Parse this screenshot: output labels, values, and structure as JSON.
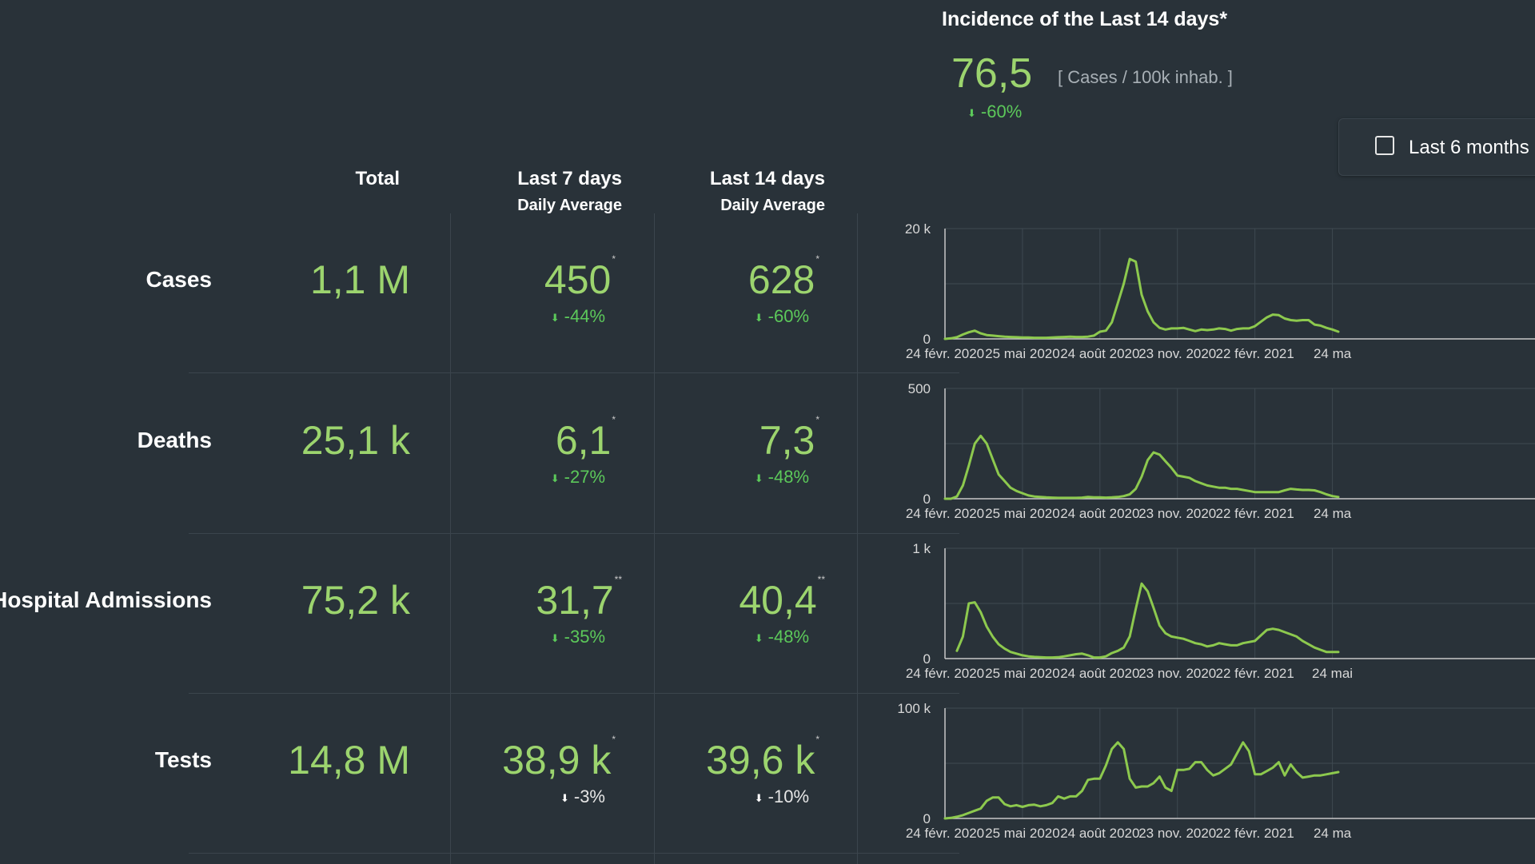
{
  "incidence": {
    "title": "Incidence of the Last 14 days*",
    "value": "76,5",
    "unit": "[ Cases / 100k inhab. ]",
    "change": "-60%",
    "change_icon": "down-arrow-icon"
  },
  "toggle": {
    "label": "Last 6 months",
    "checked": false
  },
  "columns": {
    "total": "Total",
    "last7": "Last 7 days",
    "last7_sub": "Daily Average",
    "last14": "Last 14 days",
    "last14_sub": "Daily Average"
  },
  "rows": [
    {
      "label": "Cases",
      "total": "1,1 M",
      "avg7": "450",
      "mark7": "*",
      "chg7": "-44%",
      "avg14": "628",
      "mark14": "*",
      "chg14": "-60%"
    },
    {
      "label": "Deaths",
      "total": "25,1 k",
      "avg7": "6,1",
      "mark7": "*",
      "chg7": "-27%",
      "avg14": "7,3",
      "mark14": "*",
      "chg14": "-48%"
    },
    {
      "label": "Hospital Admissions",
      "total": "75,2 k",
      "avg7": "31,7",
      "mark7": "**",
      "chg7": "-35%",
      "avg14": "40,4",
      "mark14": "**",
      "chg14": "-48%"
    },
    {
      "label": "Tests",
      "total": "14,8 M",
      "avg7": "38,9 k",
      "mark7": "*",
      "chg7": "-3%",
      "avg14": "39,6 k",
      "mark14": "*",
      "chg14": "-10%"
    }
  ],
  "colors": {
    "background": "#293239",
    "accent": "#9cd46e",
    "change_down": "#5cc95a",
    "line": "#8dc94e"
  },
  "chart_data": [
    {
      "type": "line",
      "ylim": [
        0,
        20000
      ],
      "ytick_labels": [
        "0",
        "20 k"
      ],
      "yticks": [
        0,
        20000
      ],
      "xtick_labels": [
        "24 févr. 2020",
        "25 mai 2020",
        "24 août 2020",
        "23 nov. 2020",
        "22 févr. 2021",
        "24 ma"
      ],
      "x": [
        0,
        7,
        14,
        21,
        28,
        35,
        42,
        49,
        56,
        63,
        70,
        77,
        84,
        91,
        98,
        105,
        112,
        119,
        126,
        133,
        140,
        147,
        154,
        161,
        168,
        175,
        182,
        189,
        196,
        203,
        210,
        217,
        224,
        231,
        238,
        245,
        252,
        259,
        266,
        273,
        280,
        287,
        294,
        301,
        308,
        315,
        322,
        329,
        336,
        343,
        350,
        357,
        364,
        371,
        378,
        385,
        392,
        399,
        406,
        413,
        420,
        427,
        434,
        441,
        448,
        455,
        462
      ],
      "values": [
        0,
        100,
        300,
        800,
        1200,
        1500,
        1000,
        700,
        600,
        500,
        400,
        350,
        300,
        250,
        250,
        200,
        200,
        200,
        250,
        300,
        350,
        400,
        350,
        350,
        400,
        600,
        1300,
        1500,
        3000,
        6500,
        10000,
        14500,
        14000,
        8000,
        5000,
        3000,
        2000,
        1700,
        1900,
        1900,
        2000,
        1700,
        1400,
        1700,
        1600,
        1700,
        1900,
        1800,
        1500,
        1800,
        1900,
        1900,
        2300,
        3100,
        3900,
        4400,
        4300,
        3700,
        3400,
        3300,
        3400,
        3400,
        2600,
        2400,
        2000,
        1700,
        1300
      ]
    },
    {
      "type": "line",
      "ylim": [
        0,
        500
      ],
      "ytick_labels": [
        "0",
        "500"
      ],
      "yticks": [
        0,
        500
      ],
      "xtick_labels": [
        "24 févr. 2020",
        "25 mai 2020",
        "24 août 2020",
        "23 nov. 2020",
        "22 févr. 2021",
        "24 ma"
      ],
      "x": [
        0,
        7,
        14,
        21,
        28,
        35,
        42,
        49,
        56,
        63,
        70,
        77,
        84,
        91,
        98,
        105,
        112,
        119,
        126,
        133,
        140,
        147,
        154,
        161,
        168,
        175,
        182,
        189,
        196,
        203,
        210,
        217,
        224,
        231,
        238,
        245,
        252,
        259,
        266,
        273,
        280,
        287,
        294,
        301,
        308,
        315,
        322,
        329,
        336,
        343,
        350,
        357,
        364,
        371,
        378,
        385,
        392,
        399,
        406,
        413,
        420,
        427,
        434,
        441,
        448,
        455,
        462
      ],
      "values": [
        0,
        0,
        10,
        60,
        150,
        250,
        285,
        250,
        180,
        110,
        80,
        50,
        35,
        25,
        15,
        10,
        8,
        6,
        5,
        4,
        4,
        4,
        4,
        5,
        8,
        6,
        6,
        5,
        6,
        8,
        12,
        20,
        45,
        100,
        175,
        210,
        200,
        170,
        140,
        105,
        100,
        95,
        80,
        70,
        60,
        55,
        50,
        50,
        45,
        45,
        40,
        35,
        30,
        30,
        30,
        30,
        30,
        38,
        45,
        42,
        40,
        40,
        38,
        30,
        20,
        12,
        8
      ]
    },
    {
      "type": "line",
      "ylim": [
        0,
        1000
      ],
      "ytick_labels": [
        "0",
        "1 k"
      ],
      "yticks": [
        0,
        1000
      ],
      "xtick_labels": [
        "24 févr. 2020",
        "25 mai 2020",
        "24 août 2020",
        "23 nov. 2020",
        "22 févr. 2021",
        "24 mai"
      ],
      "x": [
        14,
        21,
        28,
        35,
        42,
        49,
        56,
        63,
        70,
        77,
        84,
        91,
        98,
        105,
        112,
        119,
        126,
        133,
        140,
        147,
        154,
        161,
        168,
        175,
        182,
        189,
        196,
        203,
        210,
        217,
        224,
        231,
        238,
        245,
        252,
        259,
        266,
        273,
        280,
        287,
        294,
        301,
        308,
        315,
        322,
        329,
        336,
        343,
        350,
        357,
        364,
        371,
        378,
        385,
        392,
        399,
        406,
        413,
        420,
        427,
        434,
        441,
        448,
        455,
        462
      ],
      "values": [
        70,
        200,
        500,
        510,
        420,
        290,
        200,
        130,
        90,
        60,
        45,
        30,
        20,
        15,
        12,
        10,
        10,
        12,
        20,
        30,
        40,
        45,
        30,
        10,
        10,
        20,
        50,
        70,
        100,
        200,
        450,
        680,
        610,
        460,
        300,
        230,
        200,
        190,
        180,
        160,
        140,
        130,
        110,
        120,
        140,
        130,
        120,
        120,
        140,
        150,
        160,
        210,
        260,
        270,
        260,
        240,
        220,
        200,
        160,
        130,
        100,
        80,
        60,
        60,
        60
      ]
    },
    {
      "type": "line",
      "ylim": [
        0,
        100000
      ],
      "ytick_labels": [
        "0",
        "100 k"
      ],
      "yticks": [
        0,
        100000
      ],
      "xtick_labels": [
        "24 févr. 2020",
        "25 mai 2020",
        "24 août 2020",
        "23 nov. 2020",
        "22 févr. 2021",
        "24 ma"
      ],
      "x": [
        0,
        7,
        14,
        21,
        28,
        35,
        42,
        49,
        56,
        63,
        70,
        77,
        84,
        91,
        98,
        105,
        112,
        119,
        126,
        133,
        140,
        147,
        154,
        161,
        168,
        175,
        182,
        189,
        196,
        203,
        210,
        217,
        224,
        231,
        238,
        245,
        252,
        259,
        266,
        273,
        280,
        287,
        294,
        301,
        308,
        315,
        322,
        329,
        336,
        343,
        350,
        357,
        364,
        371,
        378,
        385,
        392,
        399,
        406,
        413,
        420,
        427,
        434,
        441,
        448,
        455,
        462
      ],
      "values": [
        0,
        500,
        1500,
        3000,
        5000,
        7000,
        9000,
        16000,
        19000,
        19000,
        13000,
        11000,
        12000,
        10500,
        12000,
        12500,
        11000,
        12000,
        14000,
        20000,
        18000,
        20000,
        20000,
        25000,
        35000,
        36000,
        36000,
        48000,
        63000,
        69000,
        63000,
        36000,
        28000,
        29000,
        29000,
        32000,
        38000,
        28000,
        25000,
        44000,
        44000,
        45000,
        51000,
        51000,
        44000,
        39000,
        41000,
        45000,
        49000,
        59000,
        69000,
        61000,
        40000,
        40000,
        43000,
        46000,
        51000,
        39000,
        49000,
        42000,
        37000,
        38000,
        39000,
        39000,
        40000,
        41000,
        42000
      ]
    }
  ]
}
